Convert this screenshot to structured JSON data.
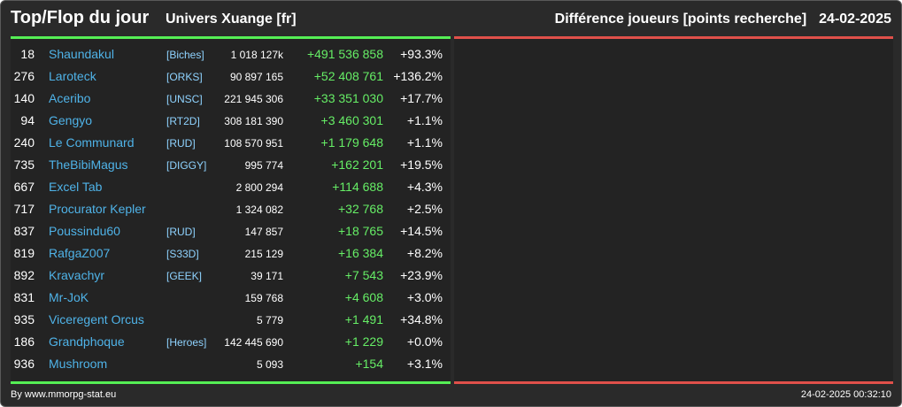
{
  "header": {
    "title": "Top/Flop du jour",
    "universe": "Univers Xuange [fr]",
    "category": "Différence joueurs [points recherche]",
    "date": "24-02-2025"
  },
  "colors": {
    "top": "#55ee55",
    "flop": "#e0504a",
    "player": "#4fb3e8",
    "alliance": "#8fd3ff",
    "gain": "#66ee66"
  },
  "top_rows": [
    {
      "rank": "18",
      "player": "Shaundakul",
      "alliance": "[Biches]",
      "points": "1 018 127k",
      "diff": "+491 536 858",
      "pct": "+93.3%"
    },
    {
      "rank": "276",
      "player": "Laroteck",
      "alliance": "[ORKS]",
      "points": "90 897 165",
      "diff": "+52 408 761",
      "pct": "+136.2%"
    },
    {
      "rank": "140",
      "player": "Aceribo",
      "alliance": "[UNSC]",
      "points": "221 945 306",
      "diff": "+33 351 030",
      "pct": "+17.7%"
    },
    {
      "rank": "94",
      "player": "Gengyo",
      "alliance": "[RT2D]",
      "points": "308 181 390",
      "diff": "+3 460 301",
      "pct": "+1.1%"
    },
    {
      "rank": "240",
      "player": "Le Communard",
      "alliance": "[RUD]",
      "points": "108 570 951",
      "diff": "+1 179 648",
      "pct": "+1.1%"
    },
    {
      "rank": "735",
      "player": "TheBibiMagus",
      "alliance": "[DIGGY]",
      "points": "995 774",
      "diff": "+162 201",
      "pct": "+19.5%"
    },
    {
      "rank": "667",
      "player": "Excel Tab",
      "alliance": "",
      "points": "2 800 294",
      "diff": "+114 688",
      "pct": "+4.3%"
    },
    {
      "rank": "717",
      "player": "Procurator Kepler",
      "alliance": "",
      "points": "1 324 082",
      "diff": "+32 768",
      "pct": "+2.5%"
    },
    {
      "rank": "837",
      "player": "Poussindu60",
      "alliance": "[RUD]",
      "points": "147 857",
      "diff": "+18 765",
      "pct": "+14.5%"
    },
    {
      "rank": "819",
      "player": "RafgaZ007",
      "alliance": "[S33D]",
      "points": "215 129",
      "diff": "+16 384",
      "pct": "+8.2%"
    },
    {
      "rank": "892",
      "player": "Kravachyr",
      "alliance": "[GEEK]",
      "points": "39 171",
      "diff": "+7 543",
      "pct": "+23.9%"
    },
    {
      "rank": "831",
      "player": "Mr-JoK",
      "alliance": "",
      "points": "159 768",
      "diff": "+4 608",
      "pct": "+3.0%"
    },
    {
      "rank": "935",
      "player": "Viceregent Orcus",
      "alliance": "",
      "points": "5 779",
      "diff": "+1 491",
      "pct": "+34.8%"
    },
    {
      "rank": "186",
      "player": "Grandphoque",
      "alliance": "[Heroes]",
      "points": "142 445 690",
      "diff": "+1 229",
      "pct": "+0.0%"
    },
    {
      "rank": "936",
      "player": "Mushroom",
      "alliance": "",
      "points": "5 093",
      "diff": "+154",
      "pct": "+3.1%"
    }
  ],
  "footer": {
    "credit": "By www.mmorpg-stat.eu",
    "timestamp": "24-02-2025 00:32:10"
  }
}
